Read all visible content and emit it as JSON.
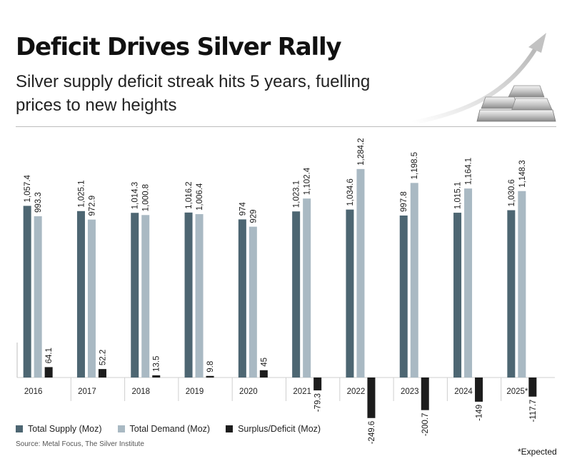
{
  "header": {
    "title": "Deficit Drives Silver Rally",
    "subtitle": "Silver supply deficit streak hits 5 years, fuelling prices to new heights"
  },
  "colors": {
    "supply": "#4d6672",
    "demand": "#a9b9c3",
    "surplus": "#1c1c1c"
  },
  "decoration": {
    "icon": "silver-bars-rising-arrow-icon"
  },
  "chart_data": {
    "type": "bar",
    "title": "",
    "xlabel": "",
    "ylabel": "",
    "categories": [
      "2016",
      "2017",
      "2018",
      "2019",
      "2020",
      "2021",
      "2022",
      "2023",
      "2024",
      "2025*"
    ],
    "series": [
      {
        "name": "Total Supply (Moz)",
        "values": [
          1057.4,
          1025.1,
          1014.3,
          1016.2,
          974,
          1023.1,
          1034.6,
          997.8,
          1015.1,
          1030.6
        ],
        "labels": [
          "1,057.4",
          "1,025.1",
          "1,014.3",
          "1,016.2",
          "974",
          "1,023.1",
          "1,034.6",
          "997.8",
          "1,015.1",
          "1,030.6"
        ]
      },
      {
        "name": "Total Demand (Moz)",
        "values": [
          993.3,
          972.9,
          1000.8,
          1006.4,
          929,
          1102.4,
          1284.2,
          1198.5,
          1164.1,
          1148.3
        ],
        "labels": [
          "993.3",
          "972.9",
          "1,000.8",
          "1,006.4",
          "929",
          "1,102.4",
          "1,284.2",
          "1,198.5",
          "1,164.1",
          "1,148.3"
        ]
      },
      {
        "name": "Surplus/Deficit (Moz)",
        "values": [
          64.1,
          52.2,
          13.5,
          9.8,
          45,
          -79.3,
          -249.6,
          -200.7,
          -149,
          -117.7
        ],
        "labels": [
          "64.1",
          "52.2",
          "13.5",
          "9.8",
          "45",
          "-79.3",
          "-249.6",
          "-200.7",
          "-149",
          "-117.7"
        ]
      }
    ],
    "grid": false,
    "legend": "bottom-left"
  },
  "source": "Source: Metal Focus, The Silver Institute",
  "footnote": "*Expected"
}
